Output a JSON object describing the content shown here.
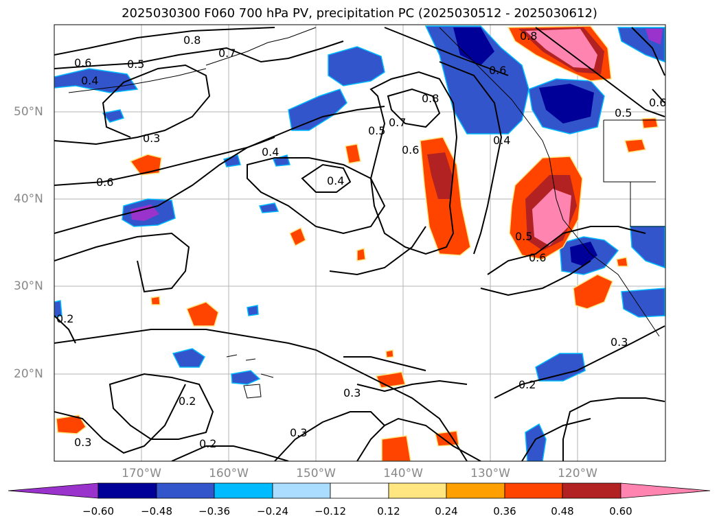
{
  "title": "2025030300 F060 700 hPa PV, precipitation PC (2025030512 - 2025030612)",
  "map": {
    "longitude_labels": [
      "170°W",
      "160°W",
      "150°W",
      "140°W",
      "130°W",
      "120°W"
    ],
    "latitude_labels": [
      "50°N",
      "40°N",
      "30°N",
      "20°N"
    ],
    "contour_labels": [
      "0.8",
      "0.7",
      "0.6",
      "0.5",
      "0.4",
      "0.3",
      "0.6",
      "0.4",
      "0.7",
      "0.8",
      "0.5",
      "0.6",
      "0.4",
      "0.3",
      "0.2",
      "0.2",
      "0.3",
      "0.3",
      "0.2",
      "0.3",
      "0.2",
      "0.8",
      "0.6",
      "0.5",
      "0.6",
      "0.5",
      "0.6",
      "0.4",
      "0.3",
      "0.2"
    ]
  },
  "colorbar": {
    "ticks": [
      "−0.60",
      "−0.48",
      "−0.36",
      "−0.24",
      "−0.12",
      "0.12",
      "0.24",
      "0.36",
      "0.48",
      "0.60"
    ],
    "colors": [
      "#9933cc",
      "#000099",
      "#3355cc",
      "#00bbff",
      "#aaddff",
      "#ffffff",
      "#ffe680",
      "#ffa000",
      "#ff4400",
      "#b22222",
      "#ff85b0"
    ]
  },
  "palette": {
    "purple": "#9933cc",
    "navy": "#000099",
    "blue": "#3355cc",
    "cyan": "#00bbff",
    "lightblue": "#aaddff",
    "yellow": "#ffe680",
    "orange": "#ffa000",
    "redorange": "#ff4400",
    "darkred": "#b22222",
    "pink": "#ff85b0"
  }
}
